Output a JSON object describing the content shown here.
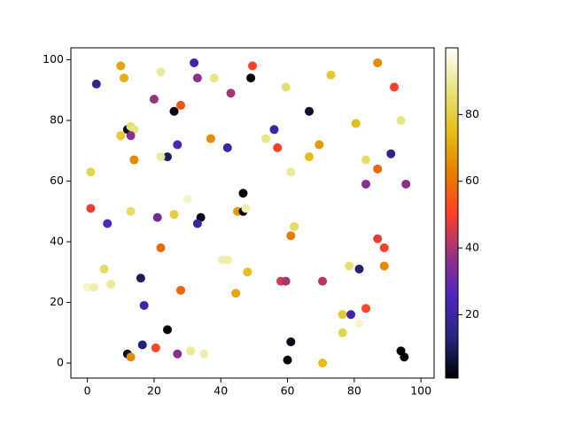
{
  "chart_data": {
    "type": "scatter",
    "colormap": "CMRmap",
    "x": [
      2.7,
      10,
      11,
      22,
      32,
      33,
      38,
      49.5,
      49,
      43,
      59.5,
      73,
      87,
      92,
      20,
      28,
      26,
      66.5,
      80.5,
      94,
      12,
      13,
      14,
      10,
      13,
      37,
      27,
      56,
      53.5,
      57,
      42,
      69.5,
      66.5,
      14,
      24,
      22,
      83.5,
      91,
      87,
      1,
      61,
      83.5,
      95.5,
      46.7,
      30,
      1,
      13,
      26,
      45,
      46.7,
      47.5,
      21,
      34,
      33,
      6,
      62,
      61,
      87,
      89,
      22,
      40.5,
      42,
      5,
      48,
      78.5,
      89,
      81.5,
      16,
      7,
      0,
      2,
      58,
      59.5,
      70.5,
      28,
      44.5,
      17,
      76.5,
      79,
      83.5,
      81.5,
      76.5,
      24,
      16.5,
      20.5,
      31,
      35,
      27,
      12,
      13,
      61,
      60,
      70.5,
      94,
      95
    ],
    "y": [
      92,
      98,
      94,
      96,
      99,
      94,
      94,
      98,
      94,
      89,
      91,
      95,
      99,
      91,
      87,
      85,
      83,
      83,
      79,
      80,
      77,
      78,
      77,
      75,
      75,
      74,
      72,
      77,
      74,
      71,
      71,
      72,
      68,
      67,
      68,
      68,
      67,
      69,
      64,
      63,
      63,
      59,
      59,
      56,
      54,
      51,
      50,
      49,
      50,
      50,
      51,
      48,
      48,
      46,
      46,
      45,
      42,
      41,
      38,
      38,
      34,
      34,
      31,
      30,
      32,
      32,
      31,
      28,
      26,
      25,
      25,
      27,
      27,
      27,
      24,
      23,
      19,
      16,
      16,
      18,
      13,
      10,
      11,
      6,
      5,
      4,
      3,
      3,
      3,
      2,
      7,
      1,
      0,
      4,
      2
    ],
    "c": [
      17,
      70,
      72,
      90,
      22,
      36,
      88,
      50,
      2,
      40,
      85,
      78,
      65,
      50,
      38,
      55,
      3,
      6,
      75,
      88,
      5,
      85,
      88,
      78,
      35,
      65,
      25,
      20,
      88,
      50,
      20,
      68,
      75,
      65,
      10,
      90,
      85,
      15,
      58,
      82,
      90,
      35,
      36,
      1,
      95,
      48,
      85,
      80,
      68,
      1,
      92,
      32,
      3,
      18,
      25,
      84,
      62,
      48,
      50,
      58,
      92,
      92,
      84,
      75,
      86,
      65,
      12,
      10,
      90,
      95,
      92,
      45,
      40,
      42,
      58,
      70,
      22,
      78,
      22,
      52,
      95,
      82,
      2,
      12,
      52,
      90,
      92,
      35,
      5,
      65,
      3,
      2,
      75,
      1,
      2
    ],
    "xlim": [
      -4.95,
      103.95
    ],
    "ylim": [
      -4.95,
      103.95
    ],
    "clim": [
      1,
      100
    ],
    "xticks": [
      0,
      20,
      40,
      60,
      80,
      100
    ],
    "yticks": [
      0,
      20,
      40,
      60,
      80,
      100
    ],
    "cticks": [
      20,
      40,
      60,
      80
    ]
  }
}
